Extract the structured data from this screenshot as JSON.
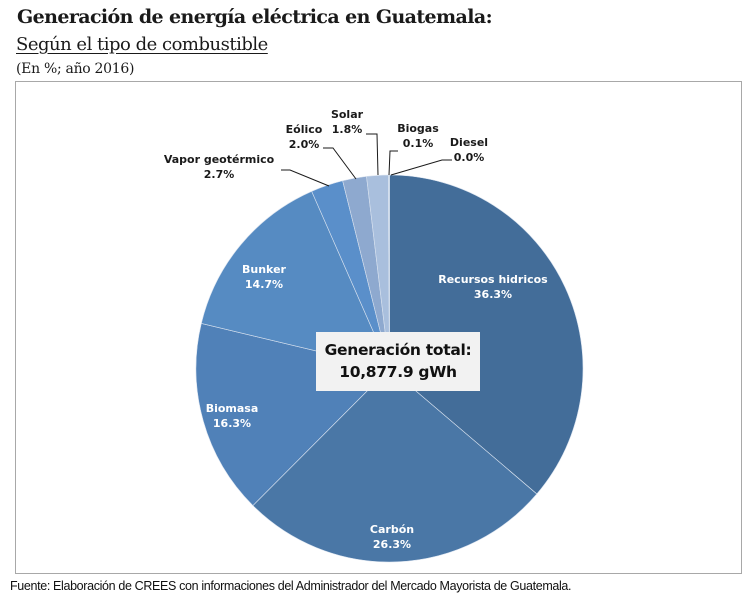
{
  "header": {
    "title": "Generación de energía eléctrica en Guatemala:",
    "subtitle": "Según el tipo de combustible",
    "units": "(En %; año 2016)"
  },
  "center_label": {
    "line1": "Generación total:",
    "line2": "10,877.9 gWh"
  },
  "source": "Fuente: Elaboración de CREES con informaciones del Administrador del Mercado Mayorista de Guatemala.",
  "chart_data": {
    "type": "pie",
    "title": "Generación de energía eléctrica en Guatemala: Según el tipo de combustible",
    "subtitle": "(En %; año 2016)",
    "unit": "%",
    "total_label": "Generación total: 10,877.9 gWh",
    "start_angle_deg": 0,
    "direction": "clockwise",
    "slices": [
      {
        "name": "Recursos hidricos",
        "value": 36.3,
        "label": "36.3%",
        "color": "#436d99",
        "label_position": "inside"
      },
      {
        "name": "Carbón",
        "value": 26.3,
        "label": "26.3%",
        "color": "#4a77a6",
        "label_position": "inside"
      },
      {
        "name": "Biomasa",
        "value": 16.3,
        "label": "16.3%",
        "color": "#5081b8",
        "label_position": "inside"
      },
      {
        "name": "Bunker",
        "value": 14.7,
        "label": "14.7%",
        "color": "#568bc2",
        "label_position": "inside"
      },
      {
        "name": "Vapor geotérmico",
        "value": 2.7,
        "label": "2.7%",
        "color": "#5a8fca",
        "label_position": "outside"
      },
      {
        "name": "Eólico",
        "value": 2.0,
        "label": "2.0%",
        "color": "#8ea9cf",
        "label_position": "outside"
      },
      {
        "name": "Solar",
        "value": 1.8,
        "label": "1.8%",
        "color": "#a9bfdd",
        "label_position": "outside"
      },
      {
        "name": "Biogas",
        "value": 0.1,
        "label": "0.1%",
        "color": "#c5d4e9",
        "label_position": "outside"
      },
      {
        "name": "Diesel",
        "value": 0.0,
        "label": "0.0%",
        "color": "#d7e1ef",
        "label_position": "outside"
      }
    ]
  }
}
